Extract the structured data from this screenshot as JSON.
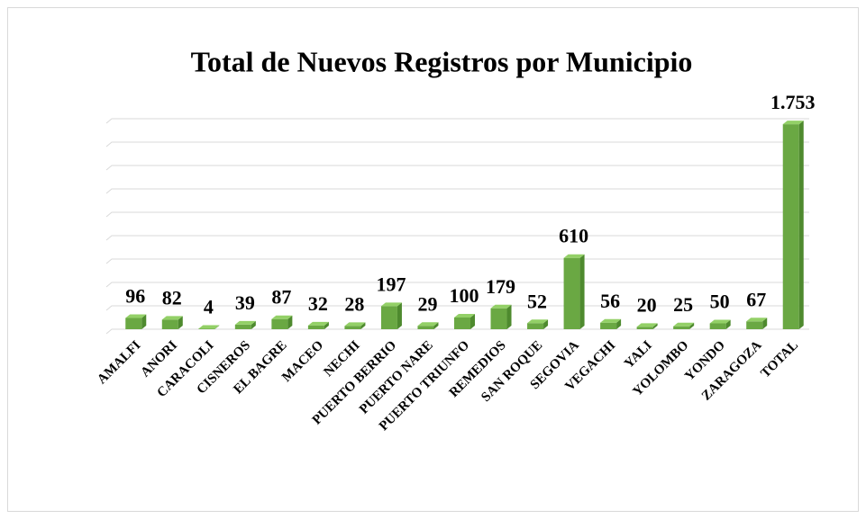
{
  "chart_data": {
    "type": "bar",
    "title": "Total de Nuevos Registros por Municipio",
    "categories": [
      "AMALFI",
      "ANORI",
      "CARACOLI",
      "CISNEROS",
      "EL BAGRE",
      "MACEO",
      "NECHI",
      "PUERTO BERRIO",
      "PUERTO NARE",
      "PUERTO TRIUNFO",
      "REMEDIOS",
      "SAN ROQUE",
      "SEGOVIA",
      "VEGACHI",
      "YALI",
      "YOLOMBO",
      "YONDO",
      "ZARAGOZA",
      "TOTAL"
    ],
    "values": [
      96,
      82,
      4,
      39,
      87,
      32,
      28,
      197,
      29,
      100,
      179,
      52,
      610,
      56,
      20,
      25,
      50,
      67,
      1753
    ],
    "value_labels": [
      "96",
      "82",
      "4",
      "39",
      "87",
      "32",
      "28",
      "197",
      "29",
      "100",
      "179",
      "52",
      "610",
      "56",
      "20",
      "25",
      "50",
      "67",
      "1.753"
    ],
    "color": "#6aa843",
    "ylim": [
      0,
      1800
    ],
    "yticks": [
      0,
      200,
      400,
      600,
      800,
      1000,
      1200,
      1400,
      1600,
      1800
    ],
    "grid": true
  }
}
